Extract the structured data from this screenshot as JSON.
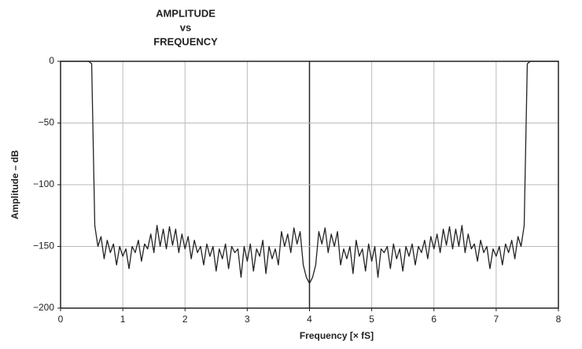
{
  "chart_data": {
    "type": "line",
    "title": [
      "AMPLITUDE",
      "vs",
      "FREQUENCY"
    ],
    "xlabel": "Frequency [× fS]",
    "ylabel": "Amplitude – dB",
    "xlim": [
      0,
      8
    ],
    "ylim": [
      -200,
      0
    ],
    "xticks": [
      0,
      1,
      2,
      3,
      4,
      5,
      6,
      7,
      8
    ],
    "yticks": [
      0,
      {
        "value": -50,
        "label": "−50"
      },
      {
        "value": -100,
        "label": "−100"
      },
      {
        "value": -150,
        "label": "−150"
      },
      {
        "value": -200,
        "label": "−200"
      }
    ],
    "grid": true,
    "series": [
      {
        "color": "#222222",
        "x": [
          0,
          0.05,
          0.1,
          0.15,
          0.2,
          0.25,
          0.3,
          0.35,
          0.4,
          0.45,
          0.5,
          0.55,
          0.6,
          0.65,
          0.7,
          0.75,
          0.8,
          0.85,
          0.9,
          0.95,
          1,
          1.05,
          1.1,
          1.15,
          1.2,
          1.25,
          1.3,
          1.35,
          1.4,
          1.45,
          1.5,
          1.55,
          1.6,
          1.65,
          1.7,
          1.75,
          1.8,
          1.85,
          1.9,
          1.95,
          2,
          2.05,
          2.1,
          2.15,
          2.2,
          2.25,
          2.3,
          2.35,
          2.4,
          2.45,
          2.5,
          2.55,
          2.6,
          2.65,
          2.7,
          2.75,
          2.8,
          2.85,
          2.9,
          2.95,
          3,
          3.05,
          3.1,
          3.15,
          3.2,
          3.25,
          3.3,
          3.35,
          3.4,
          3.45,
          3.5,
          3.55,
          3.6,
          3.65,
          3.7,
          3.75,
          3.8,
          3.85,
          3.9,
          3.95,
          4,
          4.05,
          4.1,
          4.15,
          4.2,
          4.25,
          4.3,
          4.35,
          4.4,
          4.45,
          4.5,
          4.55,
          4.6,
          4.65,
          4.7,
          4.75,
          4.8,
          4.85,
          4.9,
          4.95,
          5,
          5.05,
          5.1,
          5.15,
          5.2,
          5.25,
          5.3,
          5.35,
          5.4,
          5.45,
          5.5,
          5.55,
          5.6,
          5.65,
          5.7,
          5.75,
          5.8,
          5.85,
          5.9,
          5.95,
          6,
          6.05,
          6.1,
          6.15,
          6.2,
          6.25,
          6.3,
          6.35,
          6.4,
          6.45,
          6.5,
          6.55,
          6.6,
          6.65,
          6.7,
          6.75,
          6.8,
          6.85,
          6.9,
          6.95,
          7,
          7.05,
          7.1,
          7.15,
          7.2,
          7.25,
          7.3,
          7.35,
          7.4,
          7.45,
          7.5,
          7.55,
          7.6,
          7.65,
          7.7,
          7.75,
          7.8,
          7.85,
          7.9,
          7.95,
          8
        ],
        "values": [
          0,
          0,
          0,
          0,
          0,
          0,
          0,
          0,
          0,
          0,
          -2,
          -133,
          -150,
          -142,
          -160,
          -145,
          -155,
          -148,
          -165,
          -150,
          -158,
          -152,
          -168,
          -150,
          -155,
          -145,
          -162,
          -148,
          -152,
          -140,
          -155,
          -133,
          -150,
          -136,
          -152,
          -134,
          -149,
          -136,
          -155,
          -140,
          -152,
          -142,
          -160,
          -145,
          -155,
          -150,
          -165,
          -148,
          -158,
          -150,
          -170,
          -152,
          -160,
          -148,
          -168,
          -150,
          -155,
          -152,
          -175,
          -150,
          -162,
          -148,
          -170,
          -152,
          -158,
          -145,
          -172,
          -150,
          -160,
          -152,
          -165,
          -138,
          -150,
          -140,
          -155,
          -135,
          -148,
          -138,
          -165,
          -175,
          -180,
          -175,
          -165,
          -138,
          -148,
          -135,
          -155,
          -140,
          -150,
          -138,
          -165,
          -152,
          -160,
          -150,
          -172,
          -145,
          -158,
          -152,
          -170,
          -148,
          -162,
          -150,
          -175,
          -152,
          -155,
          -150,
          -168,
          -148,
          -160,
          -152,
          -170,
          -150,
          -158,
          -148,
          -165,
          -150,
          -155,
          -145,
          -160,
          -142,
          -152,
          -140,
          -155,
          -136,
          -149,
          -134,
          -152,
          -136,
          -150,
          -133,
          -155,
          -140,
          -152,
          -148,
          -162,
          -145,
          -155,
          -150,
          -168,
          -152,
          -158,
          -150,
          -165,
          -148,
          -155,
          -145,
          -160,
          -142,
          -150,
          -133,
          -2,
          0,
          0,
          0,
          0,
          0,
          0,
          0,
          0,
          0,
          0
        ]
      }
    ]
  }
}
